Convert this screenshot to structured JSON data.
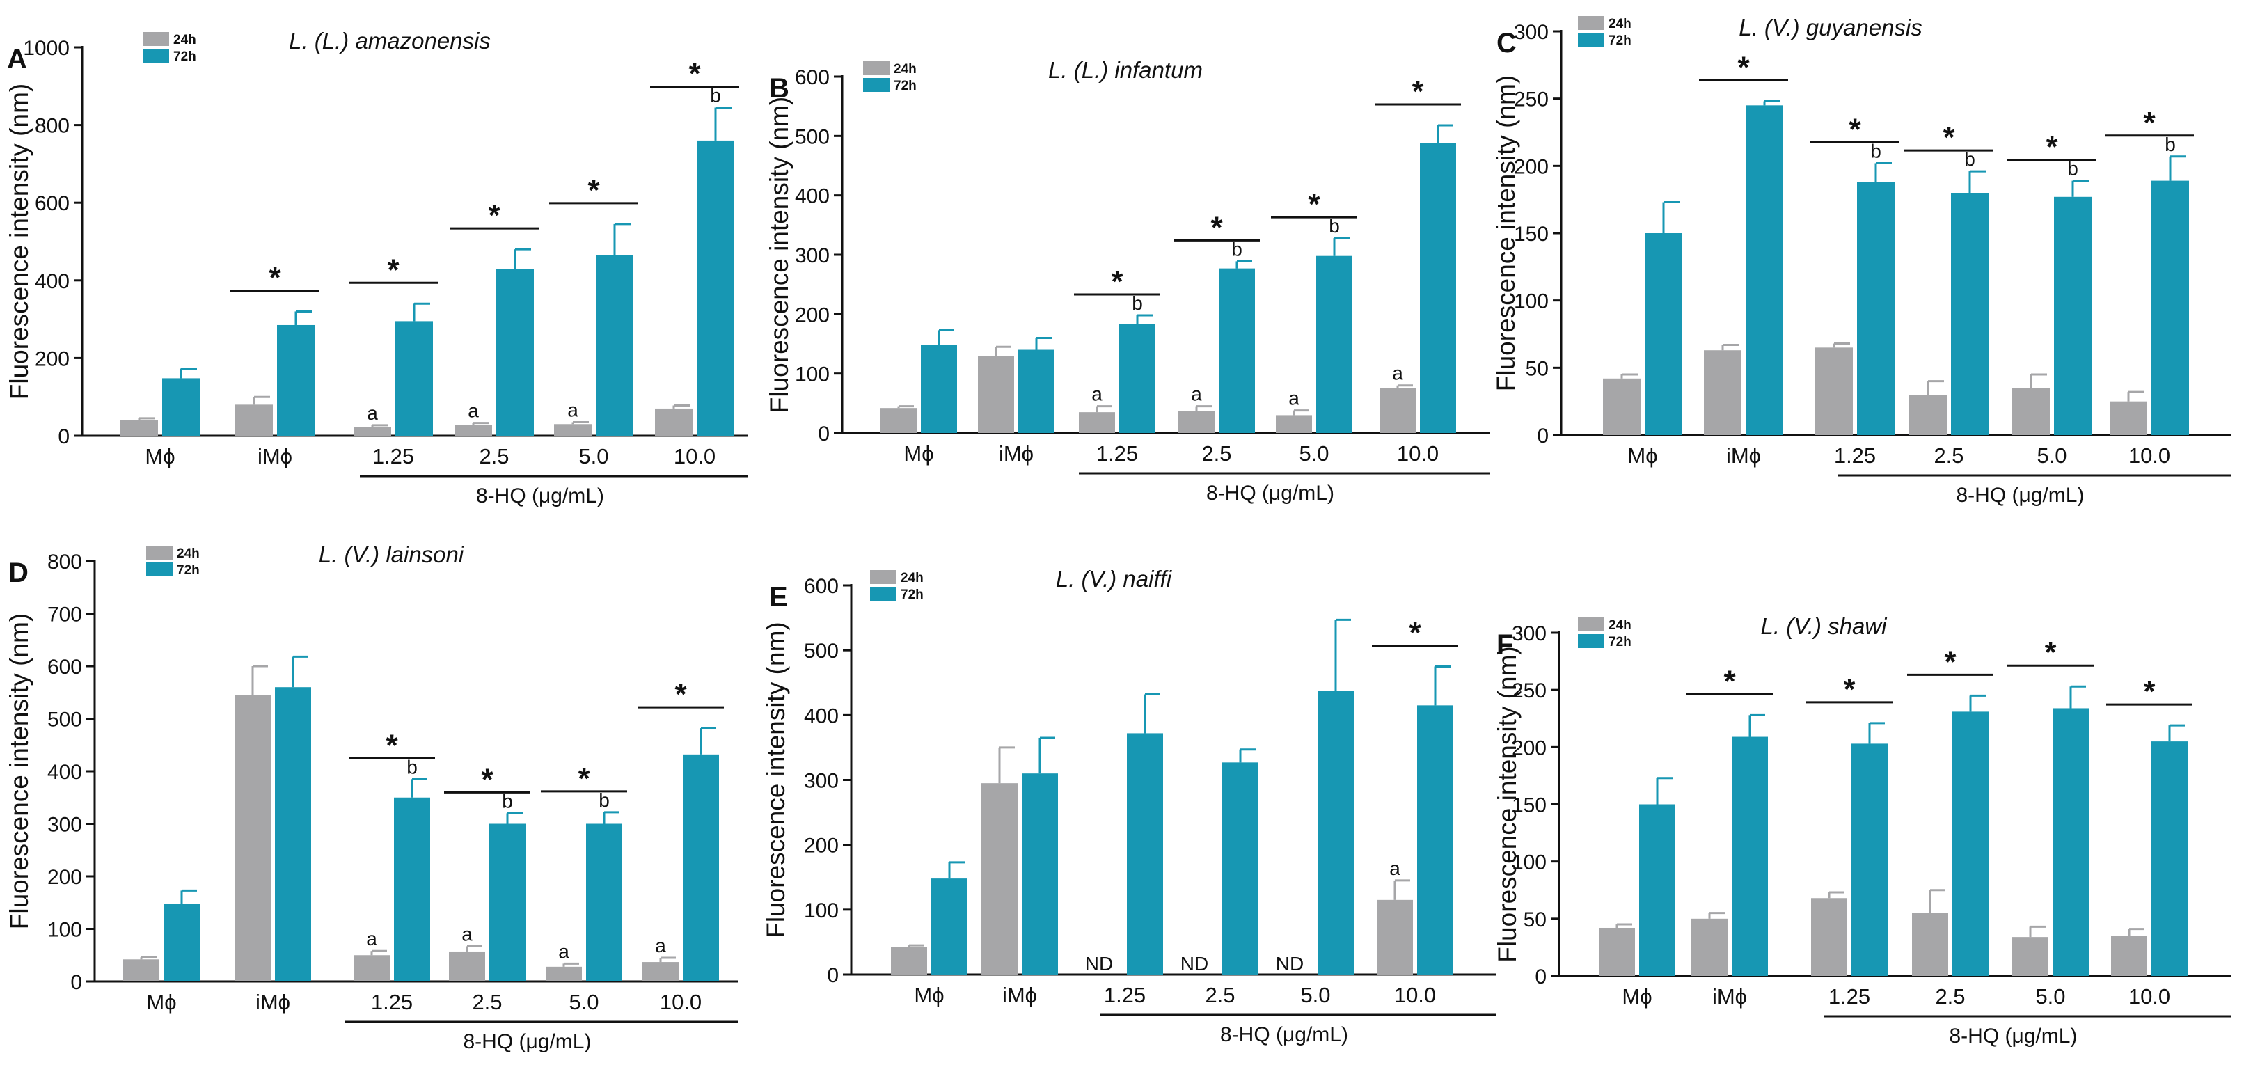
{
  "figure": {
    "colors": {
      "24h": "#a6a6a8",
      "72h": "#1797b3",
      "axis": "#111111"
    },
    "group_label": "8-HQ (μg/mL)",
    "y_axis_label": "Fluorescence intensity (nm)"
  },
  "chart_data": [
    {
      "type": "bar",
      "panel": "A",
      "title": "L. (L.) amazonensis",
      "ylabel": "Fluorescence intensity (nm)",
      "xlabel": "8-HQ (μg/mL)",
      "ylim": [
        0,
        1000
      ],
      "yticks": [
        "0",
        "200",
        "400",
        "600",
        "800",
        "1000"
      ],
      "categories": [
        "Mϕ",
        "iMϕ",
        "1.25",
        "2.5",
        "5.0",
        "10.0"
      ],
      "legend": [
        "24h",
        "72h"
      ],
      "series": [
        {
          "name": "24h",
          "values": [
            40,
            80,
            22,
            28,
            30,
            70
          ],
          "errors": [
            5,
            20,
            5,
            5,
            5,
            8
          ]
        },
        {
          "name": "72h",
          "values": [
            148,
            285,
            295,
            430,
            465,
            760
          ],
          "errors": [
            25,
            35,
            45,
            50,
            80,
            85
          ]
        }
      ],
      "annotations_24h": [
        "",
        "",
        "a",
        "a",
        "a",
        ""
      ],
      "annotations_72h": [
        "",
        "",
        "",
        "",
        "",
        "b"
      ],
      "significance": [
        "",
        "*",
        "*",
        "*",
        "*",
        "*"
      ]
    },
    {
      "type": "bar",
      "panel": "B",
      "title": "L. (L.) infantum",
      "ylabel": "Fluorescence intensity (nm)",
      "xlabel": "8-HQ (μg/mL)",
      "ylim": [
        0,
        600
      ],
      "yticks": [
        "0",
        "100",
        "200",
        "300",
        "400",
        "500",
        "600"
      ],
      "categories": [
        "Mϕ",
        "iMϕ",
        "1.25",
        "2.5",
        "5.0",
        "10.0"
      ],
      "legend": [
        "24h",
        "72h"
      ],
      "series": [
        {
          "name": "24h",
          "values": [
            42,
            130,
            35,
            37,
            30,
            75
          ],
          "errors": [
            3,
            15,
            10,
            8,
            8,
            5
          ]
        },
        {
          "name": "72h",
          "values": [
            148,
            140,
            183,
            277,
            298,
            488
          ],
          "errors": [
            25,
            20,
            15,
            12,
            30,
            30
          ]
        }
      ],
      "annotations_24h": [
        "",
        "",
        "a",
        "a",
        "a",
        "a"
      ],
      "annotations_72h": [
        "",
        "",
        "b",
        "b",
        "b",
        ""
      ],
      "significance": [
        "",
        "",
        "*",
        "*",
        "*",
        "*"
      ]
    },
    {
      "type": "bar",
      "panel": "C",
      "title": "L. (V.) guyanensis",
      "ylabel": "Fluorescence intensity (nm)",
      "xlabel": "8-HQ (μg/mL)",
      "ylim": [
        0,
        300
      ],
      "yticks": [
        "0",
        "50",
        "100",
        "150",
        "200",
        "250",
        "300"
      ],
      "categories": [
        "Mϕ",
        "iMϕ",
        "1.25",
        "2.5",
        "5.0",
        "10.0"
      ],
      "legend": [
        "24h",
        "72h"
      ],
      "series": [
        {
          "name": "24h",
          "values": [
            42,
            63,
            65,
            30,
            35,
            25
          ],
          "errors": [
            3,
            4,
            3,
            10,
            10,
            7
          ]
        },
        {
          "name": "72h",
          "values": [
            150,
            245,
            188,
            180,
            177,
            189
          ],
          "errors": [
            23,
            3,
            14,
            16,
            12,
            18
          ]
        }
      ],
      "annotations_24h": [
        "",
        "",
        "",
        "",
        "",
        ""
      ],
      "annotations_72h": [
        "",
        "",
        "b",
        "b",
        "b",
        "b"
      ],
      "significance": [
        "",
        "*",
        "*",
        "*",
        "*",
        "*"
      ]
    },
    {
      "type": "bar",
      "panel": "D",
      "title": "L. (V.) lainsoni",
      "ylabel": "Fluorescence intensity (nm)",
      "xlabel": "8-HQ (μg/mL)",
      "ylim": [
        0,
        800
      ],
      "yticks": [
        "0",
        "100",
        "200",
        "300",
        "400",
        "500",
        "600",
        "700",
        "800"
      ],
      "categories": [
        "Mϕ",
        "iMϕ",
        "1.25",
        "2.5",
        "5.0",
        "10.0"
      ],
      "legend": [
        "24h",
        "72h"
      ],
      "series": [
        {
          "name": "24h",
          "values": [
            42,
            545,
            50,
            57,
            28,
            37
          ],
          "errors": [
            4,
            55,
            8,
            10,
            6,
            8
          ]
        },
        {
          "name": "72h",
          "values": [
            148,
            560,
            350,
            300,
            300,
            432
          ],
          "errors": [
            25,
            58,
            35,
            20,
            22,
            50
          ]
        }
      ],
      "annotations_24h": [
        "",
        "",
        "a",
        "a",
        "a",
        "a"
      ],
      "annotations_72h": [
        "",
        "",
        "b",
        "b",
        "b",
        ""
      ],
      "significance": [
        "",
        "",
        "*",
        "*",
        "*",
        "*"
      ]
    },
    {
      "type": "bar",
      "panel": "E",
      "title": "L. (V.) naiffi",
      "ylabel": "Fluorescence intensity (nm)",
      "xlabel": "8-HQ (μg/mL)",
      "ylim": [
        0,
        600
      ],
      "yticks": [
        "0",
        "100",
        "200",
        "300",
        "400",
        "500",
        "600"
      ],
      "categories": [
        "Mϕ",
        "iMϕ",
        "1.25",
        "2.5",
        "5.0",
        "10.0"
      ],
      "legend": [
        "24h",
        "72h"
      ],
      "series": [
        {
          "name": "24h",
          "values": [
            42,
            295,
            0,
            0,
            0,
            115
          ],
          "errors": [
            3,
            55,
            0,
            0,
            0,
            30
          ]
        },
        {
          "name": "72h",
          "values": [
            148,
            310,
            372,
            327,
            437,
            415
          ],
          "errors": [
            25,
            55,
            60,
            20,
            110,
            60
          ]
        }
      ],
      "annotations_24h": [
        "",
        "",
        "ND",
        "ND",
        "ND",
        "a"
      ],
      "annotations_72h": [
        "",
        "",
        "",
        "",
        "",
        ""
      ],
      "significance": [
        "",
        "",
        "",
        "",
        "",
        "*"
      ]
    },
    {
      "type": "bar",
      "panel": "F",
      "title": "L. (V.) shawi",
      "ylabel": "Fluorescence intensity (nm)",
      "xlabel": "8-HQ (μg/mL)",
      "ylim": [
        0,
        300
      ],
      "yticks": [
        "0",
        "50",
        "100",
        "150",
        "200",
        "250",
        "300"
      ],
      "categories": [
        "Mϕ",
        "iMϕ",
        "1.25",
        "2.5",
        "5.0",
        "10.0"
      ],
      "legend": [
        "24h",
        "72h"
      ],
      "series": [
        {
          "name": "24h",
          "values": [
            42,
            50,
            68,
            55,
            34,
            35
          ],
          "errors": [
            3,
            5,
            5,
            20,
            9,
            6
          ]
        },
        {
          "name": "72h",
          "values": [
            150,
            209,
            203,
            231,
            234,
            205
          ],
          "errors": [
            23,
            19,
            18,
            14,
            19,
            14
          ]
        }
      ],
      "annotations_24h": [
        "",
        "",
        "",
        "",
        "",
        ""
      ],
      "annotations_72h": [
        "",
        "",
        "",
        "",
        "",
        ""
      ],
      "significance": [
        "",
        "*",
        "*",
        "*",
        "*",
        "*"
      ]
    }
  ]
}
